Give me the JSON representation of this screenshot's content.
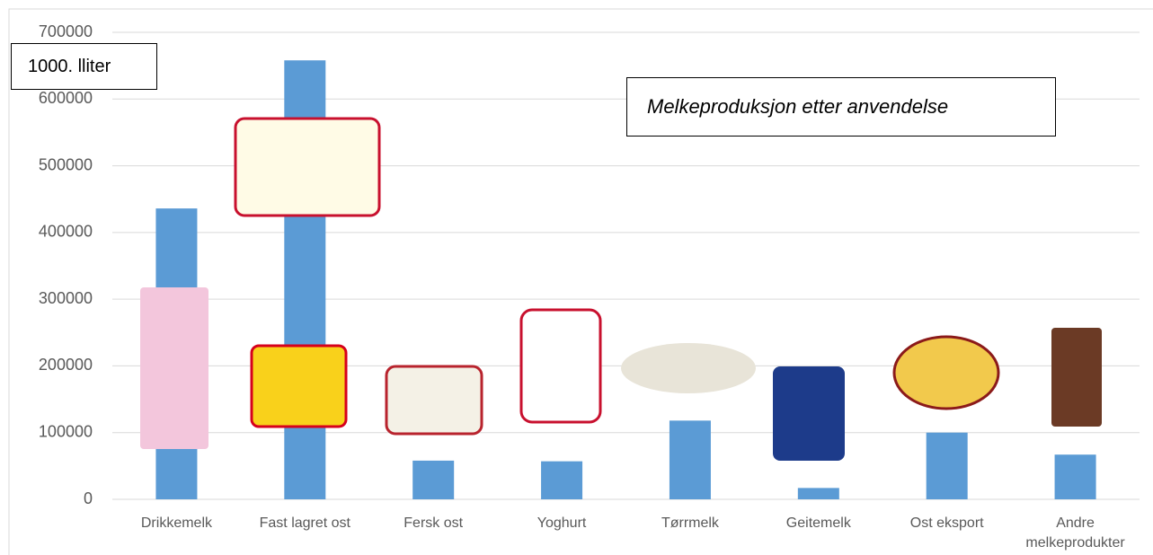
{
  "chart_data": {
    "type": "bar",
    "title": "Melkeproduksjon etter anvendelse",
    "y_label": "1000. lliter",
    "categories": [
      "Drikkemelk",
      "Fast lagret ost",
      "Fersk ost",
      "Yoghurt",
      "Tørrmelk",
      "Geitemelk",
      "Ost eksport",
      "Andre melkeprodukter"
    ],
    "values": [
      436000,
      658000,
      58000,
      57000,
      118000,
      17000,
      100000,
      67000
    ],
    "color": "#5b9bd5",
    "ylim": [
      0,
      700000
    ],
    "yticks": [
      0,
      100000,
      200000,
      300000,
      400000,
      500000,
      600000,
      700000
    ],
    "grid": true
  }
}
